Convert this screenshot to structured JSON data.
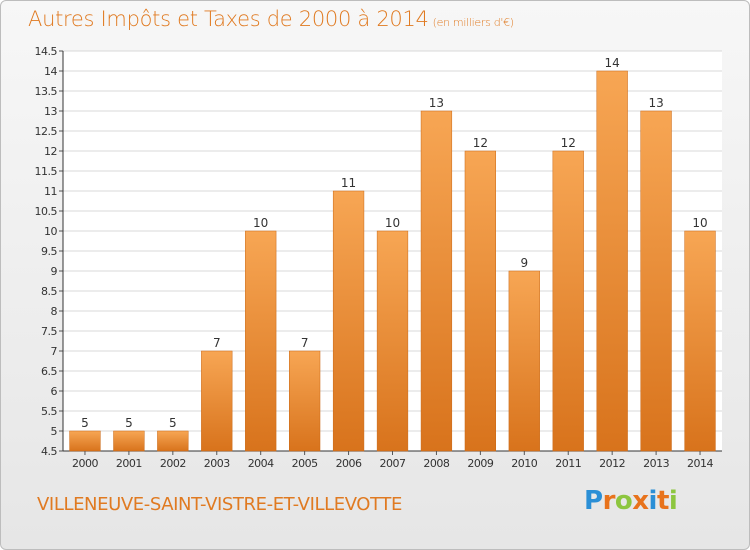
{
  "title": "Autres Impôts et Taxes de 2000 à 2014",
  "title_unit": "(en milliers d'€)",
  "location": "VILLENEUVE-SAINT-VISTRE-ET-VILLEVOTTE",
  "logo": {
    "letters": [
      "P",
      "r",
      "o",
      "x",
      "i",
      "t",
      "i"
    ],
    "colors": [
      "#2b8fd6",
      "#e8731c",
      "#8dc63f",
      "#e8731c",
      "#2b8fd6",
      "#e8731c",
      "#8dc63f"
    ]
  },
  "colors": {
    "bar_light": "#f7a654",
    "bar_dark": "#d8731c",
    "title": "#e07a21",
    "grid": "#d8d8d8"
  },
  "chart_data": {
    "type": "bar",
    "categories": [
      "2000",
      "2001",
      "2002",
      "2003",
      "2004",
      "2005",
      "2006",
      "2007",
      "2008",
      "2009",
      "2010",
      "2011",
      "2012",
      "2013",
      "2014"
    ],
    "values": [
      5,
      5,
      5,
      7,
      10,
      7,
      11,
      10,
      13,
      12,
      9,
      12,
      14,
      13,
      10
    ],
    "data_labels": [
      "5",
      "5",
      "5",
      "7",
      "10",
      "7",
      "11",
      "10",
      "13",
      "12",
      "9",
      "12",
      "14",
      "13",
      "10"
    ],
    "ylim": [
      4.5,
      14.5
    ],
    "yticks": [
      4.5,
      5,
      5.5,
      6,
      6.5,
      7,
      7.5,
      8,
      8.5,
      9,
      9.5,
      10,
      10.5,
      11,
      11.5,
      12,
      12.5,
      13,
      13.5,
      14,
      14.5
    ],
    "ytick_labels": [
      "4.5",
      "5",
      "5.5",
      "6",
      "6.5",
      "7",
      "7.5",
      "8",
      "8.5",
      "9",
      "9.5",
      "10",
      "10.5",
      "11",
      "11.5",
      "12",
      "12.5",
      "13",
      "13.5",
      "14",
      "14.5"
    ],
    "grid": true
  }
}
